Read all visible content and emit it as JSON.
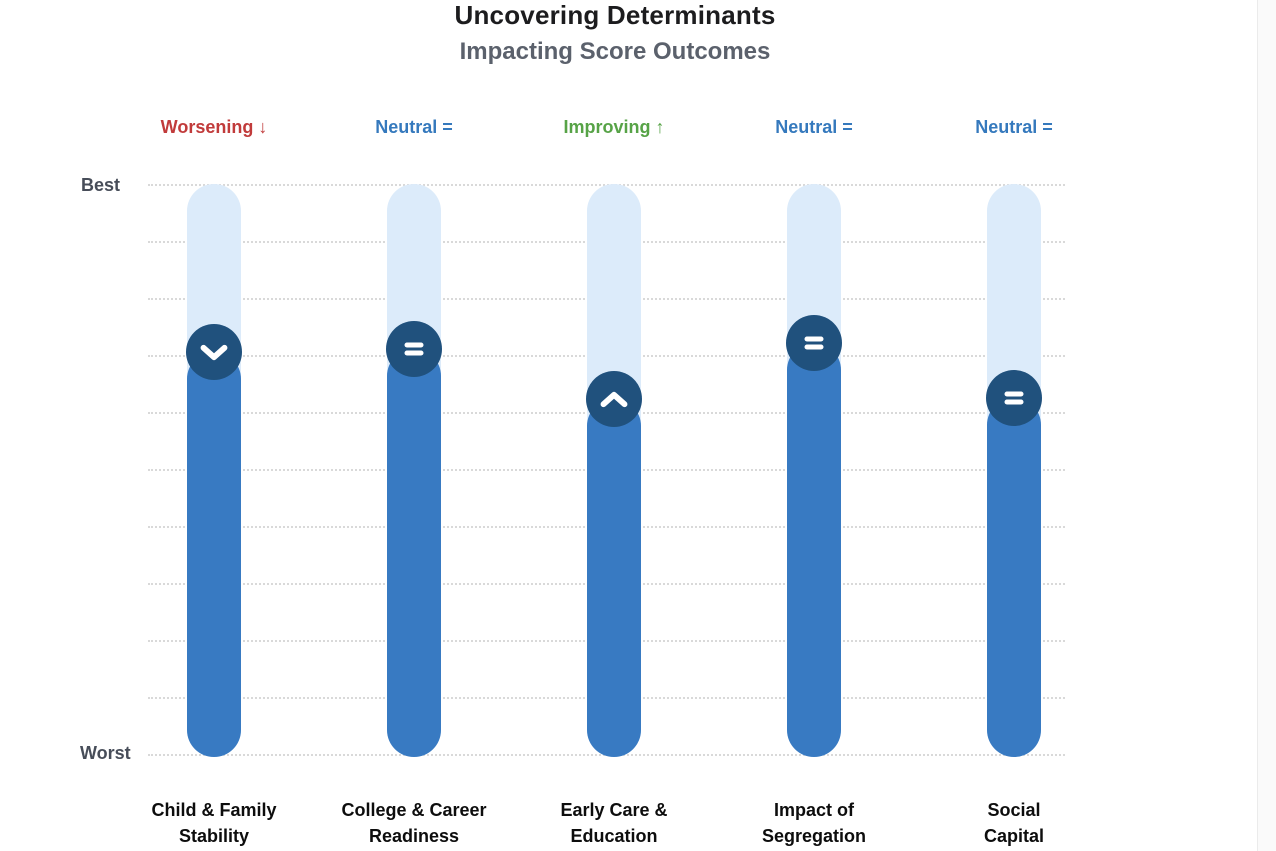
{
  "header": {
    "title": "Uncovering Determinants",
    "subtitle": "Impacting Score Outcomes"
  },
  "axis": {
    "best_label": "Best",
    "worst_label": "Worst"
  },
  "colors": {
    "bar_fill": "#387ac2",
    "bar_track": "#dcebfa",
    "marker_circle": "#20517d",
    "worsening_red": "#c13b3b",
    "neutral_blue": "#3579bd",
    "improving_green": "#57a347",
    "gridline": "#d9d9d9",
    "title_text": "#1c1c1e",
    "subtitle_text": "#5b616c",
    "axis_text": "#474d59",
    "category_text": "#0d0d0d"
  },
  "chart_data": {
    "type": "bar",
    "title": "Uncovering Determinants",
    "subtitle": "Impacting Score Outcomes",
    "orientation": "vertical-slider",
    "y_axis": {
      "top_label": "Best",
      "bottom_label": "Worst",
      "scale": "Worst=0 to Best=100"
    },
    "grid": true,
    "gridline_count": 11,
    "legend_position": "none",
    "categories": [
      "Child & Family Stability",
      "College & Career Readiness",
      "Early Care & Education",
      "Impact of Segregation",
      "Social Capital"
    ],
    "columns": [
      {
        "name": "Child & Family Stability",
        "display_name": "Child & Family\nStability",
        "trend_label": "Worsening ↓",
        "trend": "worsening",
        "trend_color": "#c13b3b",
        "icon": "chevron-down-icon",
        "score_pct_of_best": 70,
        "marker_frac_from_top": 0.295
      },
      {
        "name": "College & Career Readiness",
        "display_name": "College & Career\nReadiness",
        "trend_label": "Neutral =",
        "trend": "neutral",
        "trend_color": "#3579bd",
        "icon": "equals-icon",
        "score_pct_of_best": 71,
        "marker_frac_from_top": 0.289
      },
      {
        "name": "Early Care & Education",
        "display_name": "Early Care &\nEducation",
        "trend_label": "Improving ↑",
        "trend": "improving",
        "trend_color": "#57a347",
        "icon": "chevron-up-icon",
        "score_pct_of_best": 62,
        "marker_frac_from_top": 0.377
      },
      {
        "name": "Impact of Segregation",
        "display_name": "Impact of\nSegregation",
        "trend_label": "Neutral =",
        "trend": "neutral",
        "trend_color": "#3579bd",
        "icon": "equals-icon",
        "score_pct_of_best": 72,
        "marker_frac_from_top": 0.279
      },
      {
        "name": "Social Capital",
        "display_name": "Social\nCapital",
        "trend_label": "Neutral =",
        "trend": "neutral",
        "trend_color": "#3579bd",
        "icon": "equals-icon",
        "score_pct_of_best": 63,
        "marker_frac_from_top": 0.375
      }
    ]
  }
}
